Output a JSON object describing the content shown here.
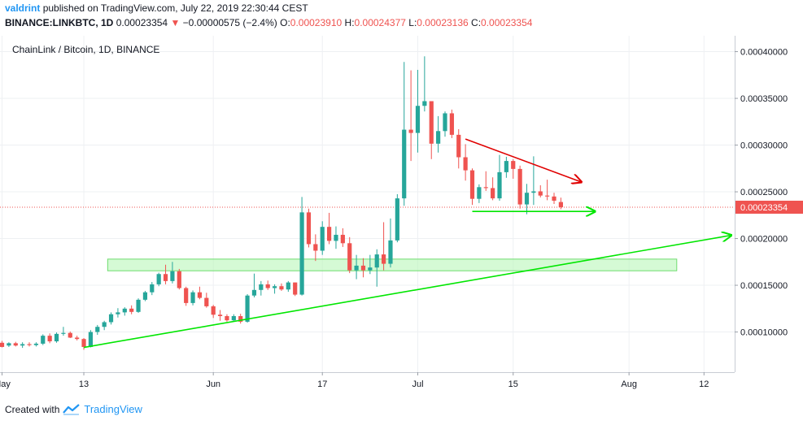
{
  "header": {
    "author": "valdrint",
    "published_text": "published on TradingView.com, July 22, 2019 22:30:44 CEST",
    "symbol": "BINANCE:LINKBTC, 1D",
    "last": "0.00023354",
    "arrow": "▼",
    "change": "−0.00000575 (−2.4%)",
    "o_label": "O:",
    "o_val": "0.00023910",
    "h_label": "H:",
    "h_val": "0.00024377",
    "l_label": "L:",
    "l_val": "0.00023136",
    "c_label": "C:",
    "c_val": "0.00023354"
  },
  "footer": {
    "created_with": "Created with",
    "brand": "TradingView",
    "logo_icon": "tradingview-logo-icon"
  },
  "colors": {
    "up": "#26a69a",
    "down": "#ef5350",
    "trend_green": "#00e600",
    "trend_red": "#e00000",
    "zone": "#b9f6b9",
    "grid": "#eef0f3"
  },
  "chart_data": {
    "type": "candlestick",
    "title": "ChainLink / Bitcoin, 1D, BINANCE",
    "current_price": 0.00023354,
    "current_price_label": "0.00023354",
    "y_ticks": [
      {
        "v": 0.0001,
        "label": "0.00010000"
      },
      {
        "v": 0.00015,
        "label": "0.00015000"
      },
      {
        "v": 0.0002,
        "label": "0.00020000"
      },
      {
        "v": 0.00025,
        "label": "0.00025000"
      },
      {
        "v": 0.0003,
        "label": "0.00030000"
      },
      {
        "v": 0.00035,
        "label": "0.00035000"
      },
      {
        "v": 0.0004,
        "label": "0.00040000"
      }
    ],
    "x_ticks": [
      {
        "day": 0,
        "label": "May"
      },
      {
        "day": 12,
        "label": "13"
      },
      {
        "day": 31,
        "label": "Jun"
      },
      {
        "day": 47,
        "label": "17"
      },
      {
        "day": 61,
        "label": "Jul"
      },
      {
        "day": 75,
        "label": "15"
      },
      {
        "day": 92,
        "label": "Aug"
      },
      {
        "day": 103,
        "label": "12"
      }
    ],
    "ylim": [
      5.7e-05,
      0.000417
    ],
    "xlim": [
      -0.3,
      107.5
    ],
    "candles": [
      {
        "d": 0,
        "o": 8.85e-05,
        "h": 9.05e-05,
        "l": 8.35e-05,
        "c": 8.4e-05
      },
      {
        "d": 1,
        "o": 8.55e-05,
        "h": 8.9e-05,
        "l": 8.4e-05,
        "c": 8.8e-05
      },
      {
        "d": 2,
        "o": 8.8e-05,
        "h": 8.95e-05,
        "l": 8.45e-05,
        "c": 8.55e-05
      },
      {
        "d": 3,
        "o": 8.55e-05,
        "h": 8.9e-05,
        "l": 8.3e-05,
        "c": 8.7e-05
      },
      {
        "d": 4,
        "o": 8.7e-05,
        "h": 8.9e-05,
        "l": 8.45e-05,
        "c": 8.6e-05
      },
      {
        "d": 5,
        "o": 8.6e-05,
        "h": 8.9e-05,
        "l": 8.45e-05,
        "c": 8.75e-05
      },
      {
        "d": 6,
        "o": 8.75e-05,
        "h": 9.75e-05,
        "l": 8.6e-05,
        "c": 9.6e-05
      },
      {
        "d": 7,
        "o": 9.6e-05,
        "h": 9.85e-05,
        "l": 8.8e-05,
        "c": 9e-05
      },
      {
        "d": 8,
        "o": 9e-05,
        "h": 9.95e-05,
        "l": 8.85e-05,
        "c": 9.8e-05
      },
      {
        "d": 9,
        "o": 9.8e-05,
        "h": 0.0001055,
        "l": 9.6e-05,
        "c": 9.9e-05
      },
      {
        "d": 10,
        "o": 9.9e-05,
        "h": 0.0001005,
        "l": 9.35e-05,
        "c": 9.4e-05
      },
      {
        "d": 11,
        "o": 9.4e-05,
        "h": 9.6e-05,
        "l": 9.1e-05,
        "c": 9.25e-05
      },
      {
        "d": 12,
        "o": 9.25e-05,
        "h": 9.35e-05,
        "l": 8.1e-05,
        "c": 8.4e-05
      },
      {
        "d": 13,
        "o": 8.4e-05,
        "h": 0.000102,
        "l": 8.35e-05,
        "c": 0.0001
      },
      {
        "d": 14,
        "o": 0.0001,
        "h": 0.0001075,
        "l": 9.7e-05,
        "c": 0.0001055
      },
      {
        "d": 15,
        "o": 0.0001055,
        "h": 0.000112,
        "l": 0.000102,
        "c": 0.0001105
      },
      {
        "d": 16,
        "o": 0.0001105,
        "h": 0.000121,
        "l": 0.000108,
        "c": 0.000119
      },
      {
        "d": 17,
        "o": 0.000119,
        "h": 0.0001255,
        "l": 0.0001155,
        "c": 0.000121
      },
      {
        "d": 18,
        "o": 0.000121,
        "h": 0.0001265,
        "l": 0.0001175,
        "c": 0.000125
      },
      {
        "d": 19,
        "o": 0.000125,
        "h": 0.0001285,
        "l": 0.000119,
        "c": 0.0001215
      },
      {
        "d": 20,
        "o": 0.0001215,
        "h": 0.000136,
        "l": 0.0001205,
        "c": 0.0001345
      },
      {
        "d": 21,
        "o": 0.0001345,
        "h": 0.000144,
        "l": 0.000133,
        "c": 0.0001425
      },
      {
        "d": 22,
        "o": 0.0001425,
        "h": 0.0001535,
        "l": 0.0001395,
        "c": 0.000151
      },
      {
        "d": 23,
        "o": 0.000151,
        "h": 0.0001635,
        "l": 0.000149,
        "c": 0.000162
      },
      {
        "d": 24,
        "o": 0.000162,
        "h": 0.000172,
        "l": 0.000151,
        "c": 0.0001545
      },
      {
        "d": 25,
        "o": 0.0001545,
        "h": 0.000175,
        "l": 0.000152,
        "c": 0.000165
      },
      {
        "d": 26,
        "o": 0.000165,
        "h": 0.0001675,
        "l": 0.0001455,
        "c": 0.000147
      },
      {
        "d": 27,
        "o": 0.000147,
        "h": 0.0001485,
        "l": 0.000128,
        "c": 0.000131
      },
      {
        "d": 28,
        "o": 0.000131,
        "h": 0.0001445,
        "l": 0.0001285,
        "c": 0.0001425
      },
      {
        "d": 29,
        "o": 0.0001425,
        "h": 0.0001485,
        "l": 0.000135,
        "c": 0.0001365
      },
      {
        "d": 30,
        "o": 0.0001365,
        "h": 0.000142,
        "l": 0.000126,
        "c": 0.0001275
      },
      {
        "d": 31,
        "o": 0.0001275,
        "h": 0.000129,
        "l": 0.000115,
        "c": 0.0001185
      },
      {
        "d": 32,
        "o": 0.0001185,
        "h": 0.0001235,
        "l": 0.000112,
        "c": 0.000117
      },
      {
        "d": 33,
        "o": 0.000117,
        "h": 0.000119,
        "l": 0.000111,
        "c": 0.0001125
      },
      {
        "d": 34,
        "o": 0.0001125,
        "h": 0.000119,
        "l": 0.000111,
        "c": 0.000117
      },
      {
        "d": 35,
        "o": 0.000117,
        "h": 0.0001195,
        "l": 0.000109,
        "c": 0.000111
      },
      {
        "d": 36,
        "o": 0.000111,
        "h": 0.0001405,
        "l": 0.00011,
        "c": 0.000139
      },
      {
        "d": 37,
        "o": 0.000139,
        "h": 0.0001625,
        "l": 0.000137,
        "c": 0.000145
      },
      {
        "d": 38,
        "o": 0.000145,
        "h": 0.0001545,
        "l": 0.000139,
        "c": 0.000151
      },
      {
        "d": 39,
        "o": 0.000151,
        "h": 0.000155,
        "l": 0.000145,
        "c": 0.000147
      },
      {
        "d": 40,
        "o": 0.000147,
        "h": 0.000151,
        "l": 0.000141,
        "c": 0.000149
      },
      {
        "d": 41,
        "o": 0.000149,
        "h": 0.000152,
        "l": 0.000144,
        "c": 0.0001455
      },
      {
        "d": 42,
        "o": 0.0001455,
        "h": 0.0001545,
        "l": 0.000143,
        "c": 0.000153
      },
      {
        "d": 43,
        "o": 0.000153,
        "h": 0.000153,
        "l": 0.0001385,
        "c": 0.00014
      },
      {
        "d": 44,
        "o": 0.00014,
        "h": 0.0002445,
        "l": 0.000139,
        "c": 0.000228
      },
      {
        "d": 45,
        "o": 0.000228,
        "h": 0.000232,
        "l": 0.0001905,
        "c": 0.000194
      },
      {
        "d": 46,
        "o": 0.000194,
        "h": 0.0002045,
        "l": 0.000176,
        "c": 0.000187
      },
      {
        "d": 47,
        "o": 0.000187,
        "h": 0.0002185,
        "l": 0.0001825,
        "c": 0.0002125
      },
      {
        "d": 48,
        "o": 0.0002125,
        "h": 0.0002275,
        "l": 0.000194,
        "c": 0.0001975
      },
      {
        "d": 49,
        "o": 0.0001975,
        "h": 0.000213,
        "l": 0.000189,
        "c": 0.000204
      },
      {
        "d": 50,
        "o": 0.000204,
        "h": 0.000211,
        "l": 0.000191,
        "c": 0.000195
      },
      {
        "d": 51,
        "o": 0.000195,
        "h": 0.0002015,
        "l": 0.000163,
        "c": 0.000166
      },
      {
        "d": 52,
        "o": 0.000166,
        "h": 0.0001825,
        "l": 0.0001565,
        "c": 0.000171
      },
      {
        "d": 53,
        "o": 0.000171,
        "h": 0.000179,
        "l": 0.0001585,
        "c": 0.000166
      },
      {
        "d": 54,
        "o": 0.000166,
        "h": 0.0001825,
        "l": 0.000162,
        "c": 0.000169
      },
      {
        "d": 55,
        "o": 0.000169,
        "h": 0.0001885,
        "l": 0.0001485,
        "c": 0.000183
      },
      {
        "d": 56,
        "o": 0.000183,
        "h": 0.0002175,
        "l": 0.000166,
        "c": 0.000173
      },
      {
        "d": 57,
        "o": 0.000173,
        "h": 0.0002215,
        "l": 0.000169,
        "c": 0.000198
      },
      {
        "d": 58,
        "o": 0.000198,
        "h": 0.0002475,
        "l": 0.000196,
        "c": 0.000243
      },
      {
        "d": 59,
        "o": 0.000243,
        "h": 0.000389,
        "l": 0.000235,
        "c": 0.0003165
      },
      {
        "d": 60,
        "o": 0.0003165,
        "h": 0.00038,
        "l": 0.000283,
        "c": 0.000313
      },
      {
        "d": 61,
        "o": 0.000313,
        "h": 0.0003805,
        "l": 0.000292,
        "c": 0.000342
      },
      {
        "d": 62,
        "o": 0.000342,
        "h": 0.000395,
        "l": 0.000336,
        "c": 0.000347
      },
      {
        "d": 63,
        "o": 0.000347,
        "h": 0.000347,
        "l": 0.000285,
        "c": 0.0003015
      },
      {
        "d": 64,
        "o": 0.0003015,
        "h": 0.000331,
        "l": 0.000292,
        "c": 0.000315
      },
      {
        "d": 65,
        "o": 0.000315,
        "h": 0.000336,
        "l": 0.000309,
        "c": 0.000334
      },
      {
        "d": 66,
        "o": 0.000334,
        "h": 0.000338,
        "l": 0.0003075,
        "c": 0.000311
      },
      {
        "d": 67,
        "o": 0.000311,
        "h": 0.000317,
        "l": 0.000275,
        "c": 0.000287
      },
      {
        "d": 68,
        "o": 0.000287,
        "h": 0.000301,
        "l": 0.000262,
        "c": 0.000273
      },
      {
        "d": 69,
        "o": 0.000273,
        "h": 0.000275,
        "l": 0.000236,
        "c": 0.0002425
      },
      {
        "d": 70,
        "o": 0.0002425,
        "h": 0.000258,
        "l": 0.000238,
        "c": 0.000255
      },
      {
        "d": 71,
        "o": 0.000255,
        "h": 0.000272,
        "l": 0.000251,
        "c": 0.000254
      },
      {
        "d": 72,
        "o": 0.000254,
        "h": 0.0002655,
        "l": 0.000241,
        "c": 0.000243
      },
      {
        "d": 73,
        "o": 0.000243,
        "h": 0.0002895,
        "l": 0.0002405,
        "c": 0.000271
      },
      {
        "d": 74,
        "o": 0.000271,
        "h": 0.0002875,
        "l": 0.000265,
        "c": 0.000283
      },
      {
        "d": 75,
        "o": 0.000283,
        "h": 0.000285,
        "l": 0.000264,
        "c": 0.0002745
      },
      {
        "d": 76,
        "o": 0.0002745,
        "h": 0.000278,
        "l": 0.000232,
        "c": 0.0002365
      },
      {
        "d": 77,
        "o": 0.0002365,
        "h": 0.0002585,
        "l": 0.000226,
        "c": 0.000249
      },
      {
        "d": 78,
        "o": 0.000249,
        "h": 0.000288,
        "l": 0.000236,
        "c": 0.0002505
      },
      {
        "d": 79,
        "o": 0.0002505,
        "h": 0.000257,
        "l": 0.000244,
        "c": 0.000246
      },
      {
        "d": 80,
        "o": 0.000246,
        "h": 0.000263,
        "l": 0.000241,
        "c": 0.000245
      },
      {
        "d": 81,
        "o": 0.000245,
        "h": 0.000249,
        "l": 0.000237,
        "c": 0.0002405
      },
      {
        "d": 82,
        "o": 0.0002391,
        "h": 0.00024377,
        "l": 0.00023136,
        "c": 0.00023354
      }
    ],
    "annotations": {
      "support_zone": {
        "d0": 15.5,
        "d1": 99,
        "y0": 0.0001655,
        "y1": 0.000178
      },
      "ascending_trendline": {
        "d0": 12,
        "y0": 8.35e-05,
        "d1": 107,
        "y1": 0.0002035
      },
      "descending_trendline": {
        "d0": 68,
        "y0": 0.0003065,
        "d1": 85,
        "y1": 0.0002605
      },
      "horizontal_support": {
        "d0": 69,
        "y0": 0.000229,
        "d1": 87,
        "y1": 0.000229
      }
    }
  }
}
